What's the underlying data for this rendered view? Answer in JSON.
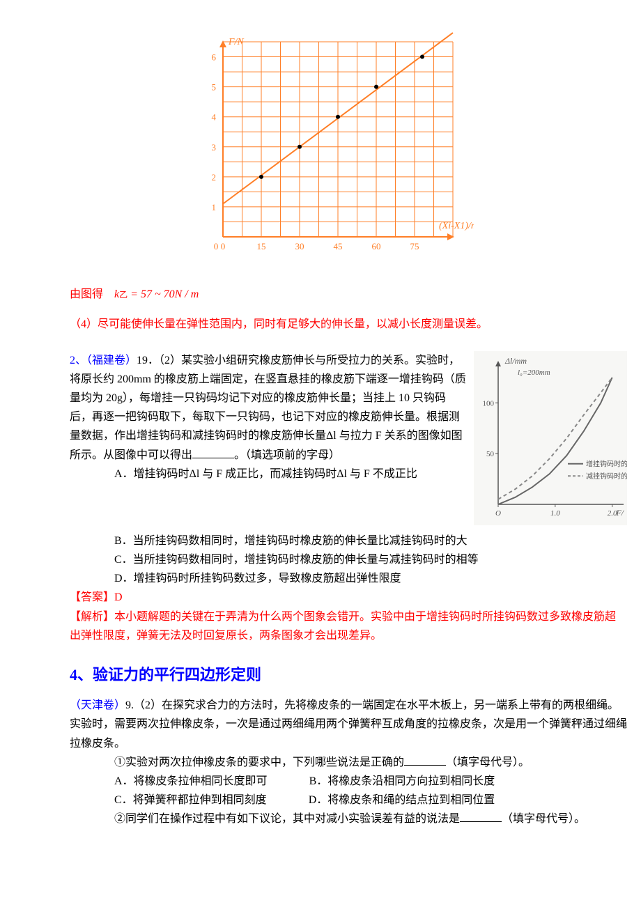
{
  "chart1": {
    "type": "scatter-line",
    "title": "",
    "y_axis_label": "F/N",
    "x_axis_label": "(Xi-X1)/mm",
    "xlim": [
      0,
      90
    ],
    "ylim": [
      0,
      6.5
    ],
    "xticks": [
      0,
      15,
      30,
      45,
      60,
      75,
      90
    ],
    "yticks": [
      0,
      1,
      2,
      3,
      4,
      5,
      6
    ],
    "xtick_labels": [
      "0",
      "15",
      "30",
      "45",
      "60",
      "75",
      ""
    ],
    "ytick_labels": [
      "",
      "1",
      "2",
      "3",
      "4",
      "5",
      "6"
    ],
    "grid_color": "#ff7f27",
    "axis_color": "#ff7f27",
    "background_color": "#ffffff",
    "line_color": "#ff7f27",
    "point_color": "#000000",
    "point_radius": 3,
    "line_width": 2,
    "points": [
      {
        "x": 15,
        "y": 2
      },
      {
        "x": 30,
        "y": 3
      },
      {
        "x": 45,
        "y": 4
      },
      {
        "x": 60,
        "y": 5
      },
      {
        "x": 78,
        "y": 6
      }
    ],
    "line_start": {
      "x": 0,
      "y": 1.1
    },
    "line_end": {
      "x": 90,
      "y": 6.8
    }
  },
  "result": {
    "prefix": "由图得",
    "var": "k",
    "sub": "乙",
    "expr": " = 57 ~ 70N / m"
  },
  "note4": "（4）尽可能使伸长量在弹性范围内，同时有足够大的伸长量，以减小长度测量误差。",
  "q2": {
    "source": "（福建卷）",
    "number": "19．（2）",
    "lead": "2、",
    "body1": "某实验小组研究橡皮筋伸长与所受拉力的关系。实验时，将原长约 200mm 的橡皮筋上端固定，在竖直悬挂的橡皮筋下端逐一增挂钩码（质量均为 20g），每增挂一只钩码均记下对应的橡皮筋伸长量；当挂上 10 只钩码后，再逐一把钩码取下，每取下一只钩码，也记下对应的橡皮筋伸长量。根据测量数据，作出增挂钩码和减挂钩码时的橡皮筋伸长量Δl 与拉力 F 关系的图像如图所示。从图像中可以得出",
    "body1_tail": "。（填选项前的字母）",
    "optA": "A．增挂钩码时Δl 与 F 成正比，而减挂钩码时Δl 与 F 不成正比",
    "optB": "B．当所挂钩码数相同时，增挂钩码时橡皮筋的伸长量比减挂钩码时的大",
    "optC": "C．当所挂钩码数相同时，增挂钩码时橡皮筋的伸长量与减挂钩码时的相等",
    "optD": "D．增挂钩码时所挂钩码数过多，导致橡皮筋超出弹性限度",
    "answer_label": "【答案】",
    "answer": "D",
    "analysis_label": "【解析】",
    "analysis": "本小题解题的关键在于弄清为什么两个图象会错开。实验中由于增挂钩码时所挂钩码数过多致橡皮筋超出弹性限度，弹簧无法及时回复原长，两条图象才会出现差异。"
  },
  "graph2": {
    "type": "line",
    "y_label": "Δl/mm",
    "sub_label": "l₀=200mm",
    "x_label": "F/",
    "xlim": [
      0,
      2.2
    ],
    "ylim": [
      0,
      140
    ],
    "xticks": [
      0,
      1.0,
      2.0
    ],
    "yticks": [
      0,
      50,
      100
    ],
    "xtick_labels": [
      "O",
      "1.0",
      "2.0"
    ],
    "ytick_labels": [
      "",
      "50",
      "100"
    ],
    "legend": {
      "solid": "增挂钩码时的",
      "dashed": "减挂钩码时的"
    },
    "solid_color": "#666666",
    "dashed_color": "#888888",
    "axis_color": "#555555",
    "background": "#f7f7f5",
    "solid_points": [
      {
        "x": 0,
        "y": 0
      },
      {
        "x": 0.3,
        "y": 7
      },
      {
        "x": 0.6,
        "y": 17
      },
      {
        "x": 0.9,
        "y": 30
      },
      {
        "x": 1.2,
        "y": 48
      },
      {
        "x": 1.5,
        "y": 72
      },
      {
        "x": 1.8,
        "y": 100
      },
      {
        "x": 2.0,
        "y": 125
      }
    ],
    "dashed_points": [
      {
        "x": 0,
        "y": 5
      },
      {
        "x": 0.3,
        "y": 15
      },
      {
        "x": 0.6,
        "y": 28
      },
      {
        "x": 0.9,
        "y": 45
      },
      {
        "x": 1.2,
        "y": 65
      },
      {
        "x": 1.5,
        "y": 88
      },
      {
        "x": 1.8,
        "y": 110
      },
      {
        "x": 2.0,
        "y": 125
      }
    ]
  },
  "section4_title": "4、验证力的平行四边形定则",
  "q3": {
    "source": "（天津卷）",
    "number": "9.（2）",
    "body": "在探究求合力的方法时，先将橡皮条的一端固定在水平木板上，另一端系上带有的两根细绳。实验时，需要两次拉伸橡皮条，一次是通过两细绳用两个弹簧秤互成角度的拉橡皮条，次是用一个弹簧秤通过细绳拉橡皮条。",
    "sub1": "①实验对两次拉伸橡皮条的要求中，下列哪些说法是正确的",
    "sub1_tail": "（填字母代号）。",
    "optA": "A．将橡皮条拉伸相同长度即可",
    "optB": "B．将橡皮条沿相同方向拉到相同长度",
    "optC": "C．将弹簧秤都拉伸到相同刻度",
    "optD": "D．将橡皮条和绳的结点拉到相同位置",
    "sub2": "②同学们在操作过程中有如下议论，其中对减小实验误差有益的说法是",
    "sub2_tail": "（填字母代号）。"
  }
}
